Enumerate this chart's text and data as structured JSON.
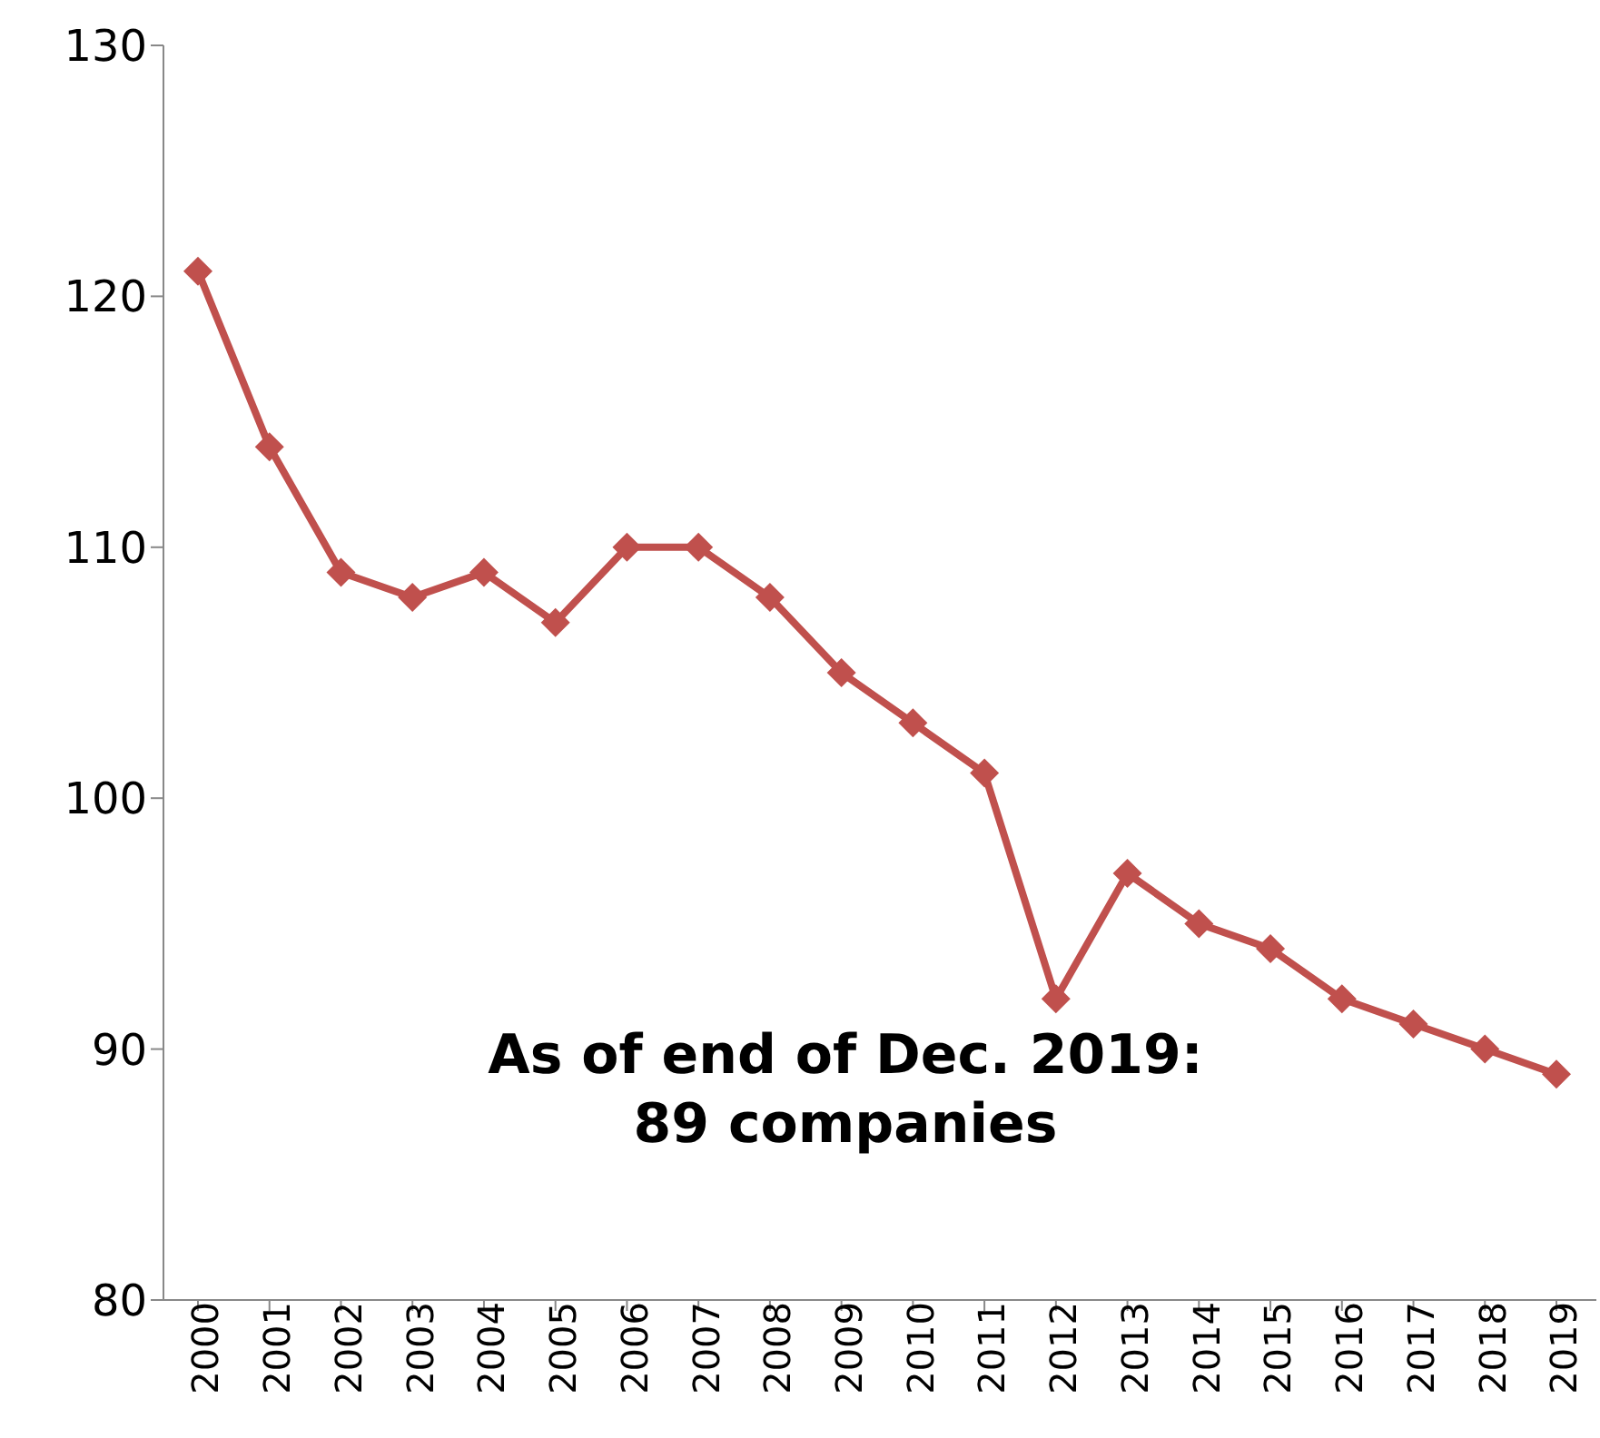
{
  "chart_data": {
    "type": "line",
    "categories": [
      "2000",
      "2001",
      "2002",
      "2003",
      "2004",
      "2005",
      "2006",
      "2007",
      "2008",
      "2009",
      "2010",
      "2011",
      "2012",
      "2013",
      "2014",
      "2015",
      "2016",
      "2017",
      "2018",
      "2019"
    ],
    "series": [
      {
        "color": "#c0504d",
        "values": [
          121,
          114,
          109,
          108,
          109,
          107,
          110,
          110,
          108,
          105,
          103,
          101,
          92,
          97,
          95,
          94,
          92,
          91,
          90,
          89
        ]
      }
    ],
    "ylim": [
      80,
      130
    ],
    "yticks": [
      80,
      90,
      100,
      110,
      120,
      130
    ],
    "grid": false,
    "legend": false,
    "marker": "diamond",
    "line_style": "solid",
    "annotations": [
      "As of end of Dec. 2019:\n89 companies"
    ]
  }
}
